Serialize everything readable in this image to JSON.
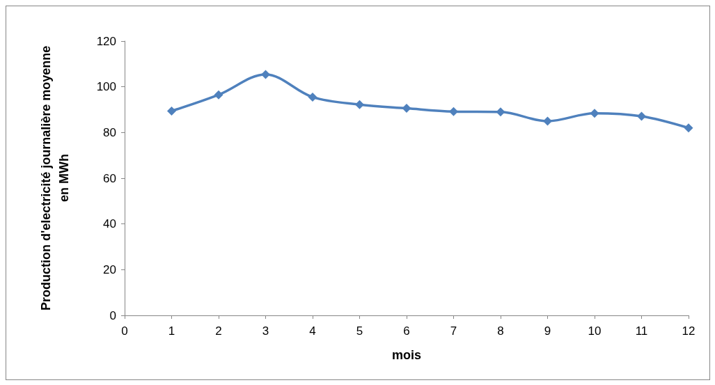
{
  "chart_data": {
    "type": "line",
    "xlabel": "mois",
    "ylabel": "Production d'electricité journalière moyenne en MWh",
    "x": [
      1,
      2,
      3,
      4,
      5,
      6,
      7,
      8,
      9,
      10,
      11,
      12
    ],
    "series": [
      {
        "color": "#4f81bd",
        "values": [
          89.4,
          96.5,
          105.4,
          95.5,
          92.2,
          90.6,
          89.2,
          89.0,
          85.0,
          88.4,
          87.1,
          82.0
        ]
      }
    ],
    "xlim": [
      0,
      12
    ],
    "xticks": [
      0,
      1,
      2,
      3,
      4,
      5,
      6,
      7,
      8,
      9,
      10,
      11,
      12
    ],
    "ylim": [
      0,
      120
    ],
    "yticks": [
      0,
      20,
      40,
      60,
      80,
      100,
      120
    ],
    "grid": false,
    "marker": "diamond",
    "line_style": "solid"
  }
}
